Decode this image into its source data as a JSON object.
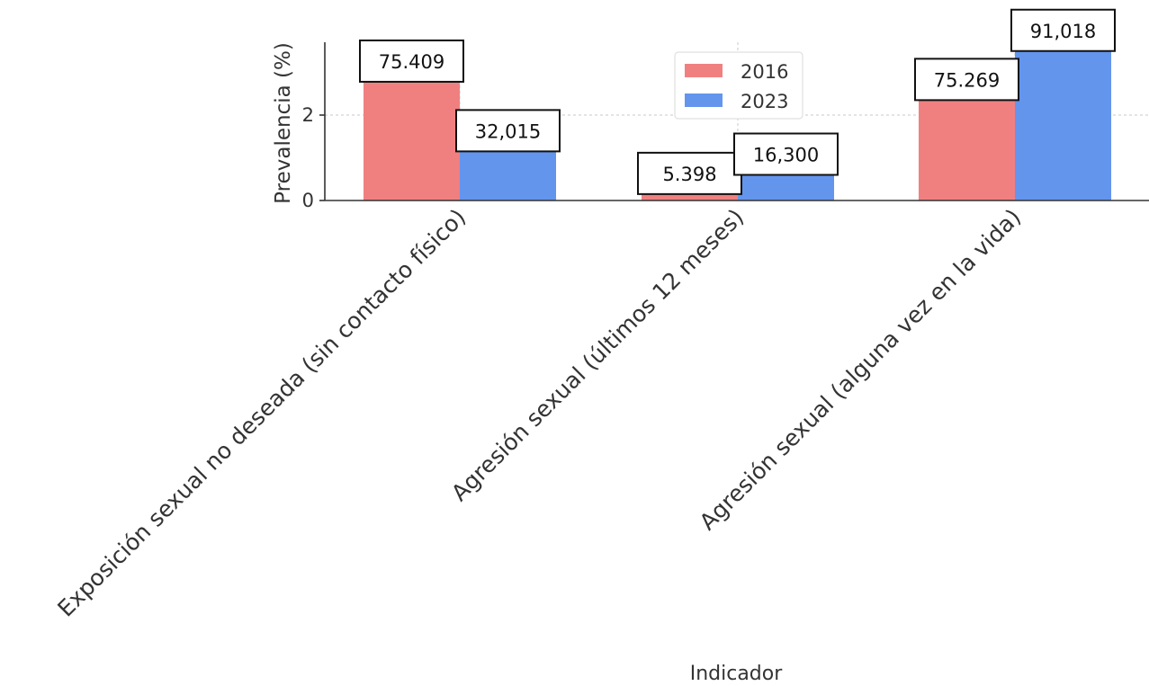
{
  "chart_data": {
    "type": "bar",
    "categories": [
      "Exposición sexual no deseada (sin contacto físico)",
      "Agresión sexual (últimos 12 meses)",
      "Agresión sexual (alguna vez en la vida)"
    ],
    "series": [
      {
        "name": "2016",
        "color": "#f08080",
        "values": [
          2.78,
          0.15,
          2.35
        ],
        "value_labels": [
          "75.409",
          "5.398",
          "75.269"
        ]
      },
      {
        "name": "2023",
        "color": "#6495ed",
        "values": [
          1.15,
          0.6,
          3.5
        ],
        "value_labels": [
          "32,015",
          "16,300",
          "91,018"
        ]
      }
    ],
    "xlabel": "Indicador",
    "ylabel": "Prevalencia (%)",
    "ylim": [
      0,
      3.7
    ],
    "yticks": [
      0,
      2
    ],
    "ytick_labels": [
      "0",
      "2"
    ],
    "grid": "horizontal and vertical, dashed",
    "legend": "upper center"
  }
}
